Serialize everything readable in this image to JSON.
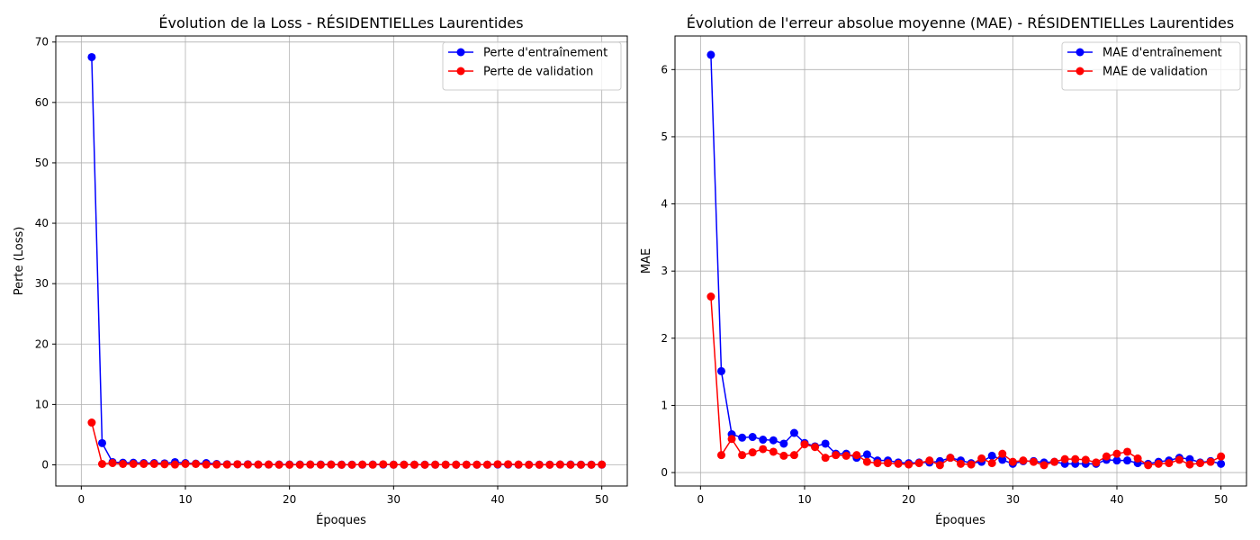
{
  "chart_data": [
    {
      "type": "line",
      "title": "Évolution de la Loss - RÉSIDENTIELLes Laurentides",
      "xlabel": "Époques",
      "ylabel": "Perte (Loss)",
      "xlim": [
        -2.45,
        52.45
      ],
      "ylim": [
        -3.5,
        71
      ],
      "xticks": [
        0,
        10,
        20,
        30,
        40,
        50
      ],
      "yticks": [
        0,
        10,
        20,
        30,
        40,
        50,
        60,
        70
      ],
      "grid": true,
      "legend_position": "top-right",
      "x": [
        1,
        2,
        3,
        4,
        5,
        6,
        7,
        8,
        9,
        10,
        11,
        12,
        13,
        14,
        15,
        16,
        17,
        18,
        19,
        20,
        21,
        22,
        23,
        24,
        25,
        26,
        27,
        28,
        29,
        30,
        31,
        32,
        33,
        34,
        35,
        36,
        37,
        38,
        39,
        40,
        41,
        42,
        43,
        44,
        45,
        46,
        47,
        48,
        49,
        50
      ],
      "series": [
        {
          "name": "Perte d'entraînement",
          "color": "#0000ff",
          "values": [
            67.5,
            3.6,
            0.45,
            0.35,
            0.35,
            0.3,
            0.3,
            0.25,
            0.45,
            0.3,
            0.2,
            0.3,
            0.15,
            0.1,
            0.1,
            0.1,
            0.05,
            0.05,
            0.05,
            0.05,
            0.05,
            0.05,
            0.05,
            0.05,
            0.03,
            0.03,
            0.03,
            0.05,
            0.05,
            0.03,
            0.03,
            0.03,
            0.03,
            0.03,
            0.03,
            0.03,
            0.03,
            0.03,
            0.03,
            0.05,
            0.05,
            0.03,
            0.03,
            0.03,
            0.03,
            0.05,
            0.05,
            0.03,
            0.03,
            0.03
          ]
        },
        {
          "name": "Perte de validation",
          "color": "#ff0000",
          "values": [
            7.0,
            0.15,
            0.3,
            0.15,
            0.15,
            0.15,
            0.15,
            0.1,
            0.05,
            0.15,
            0.15,
            0.05,
            0.05,
            0.05,
            0.1,
            0.05,
            0.05,
            0.05,
            0.02,
            0.02,
            0.02,
            0.05,
            0.02,
            0.05,
            0.02,
            0.02,
            0.05,
            0.03,
            0.1,
            0.03,
            0.03,
            0.03,
            0.02,
            0.03,
            0.03,
            0.03,
            0.03,
            0.03,
            0.03,
            0.1,
            0.1,
            0.05,
            0.02,
            0.02,
            0.02,
            0.05,
            0.02,
            0.02,
            0.02,
            0.05
          ]
        }
      ]
    },
    {
      "type": "line",
      "title": "Évolution de l'erreur absolue moyenne (MAE) - RÉSIDENTIELLes Laurentides",
      "xlabel": "Époques",
      "ylabel": "MAE",
      "xlim": [
        -2.45,
        52.45
      ],
      "ylim": [
        -0.2,
        6.5
      ],
      "xticks": [
        0,
        10,
        20,
        30,
        40,
        50
      ],
      "yticks": [
        0,
        1,
        2,
        3,
        4,
        5,
        6
      ],
      "grid": true,
      "legend_position": "top-right",
      "x": [
        1,
        2,
        3,
        4,
        5,
        6,
        7,
        8,
        9,
        10,
        11,
        12,
        13,
        14,
        15,
        16,
        17,
        18,
        19,
        20,
        21,
        22,
        23,
        24,
        25,
        26,
        27,
        28,
        29,
        30,
        31,
        32,
        33,
        34,
        35,
        36,
        37,
        38,
        39,
        40,
        41,
        42,
        43,
        44,
        45,
        46,
        47,
        48,
        49,
        50
      ],
      "series": [
        {
          "name": "MAE d'entraînement",
          "color": "#0000ff",
          "values": [
            6.22,
            1.51,
            0.57,
            0.52,
            0.53,
            0.49,
            0.48,
            0.43,
            0.59,
            0.44,
            0.39,
            0.43,
            0.28,
            0.28,
            0.22,
            0.27,
            0.18,
            0.18,
            0.15,
            0.14,
            0.15,
            0.15,
            0.17,
            0.22,
            0.18,
            0.14,
            0.16,
            0.25,
            0.19,
            0.13,
            0.17,
            0.17,
            0.15,
            0.16,
            0.13,
            0.13,
            0.13,
            0.13,
            0.19,
            0.18,
            0.18,
            0.14,
            0.13,
            0.16,
            0.18,
            0.22,
            0.2,
            0.15,
            0.17,
            0.13
          ]
        },
        {
          "name": "MAE de validation",
          "color": "#ff0000",
          "values": [
            2.62,
            0.26,
            0.5,
            0.26,
            0.3,
            0.35,
            0.31,
            0.25,
            0.26,
            0.42,
            0.38,
            0.22,
            0.26,
            0.25,
            0.26,
            0.16,
            0.14,
            0.14,
            0.13,
            0.12,
            0.14,
            0.18,
            0.11,
            0.22,
            0.13,
            0.12,
            0.21,
            0.14,
            0.28,
            0.16,
            0.18,
            0.16,
            0.11,
            0.16,
            0.2,
            0.2,
            0.19,
            0.15,
            0.24,
            0.28,
            0.31,
            0.21,
            0.11,
            0.13,
            0.14,
            0.19,
            0.12,
            0.14,
            0.16,
            0.24
          ]
        }
      ]
    }
  ]
}
